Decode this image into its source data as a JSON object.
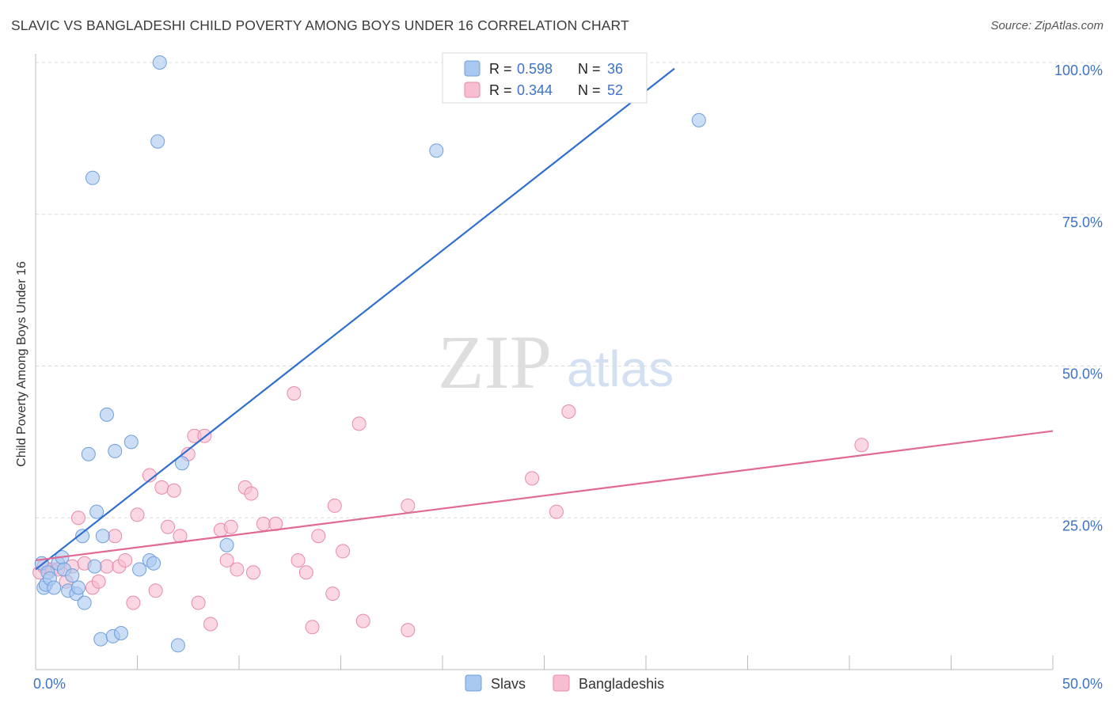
{
  "header": {
    "title": "SLAVIC VS BANGLADESHI CHILD POVERTY AMONG BOYS UNDER 16 CORRELATION CHART",
    "source": "Source: ZipAtlas.com"
  },
  "watermark": {
    "zip": "ZIP",
    "atlas": "atlas"
  },
  "legend_top": {
    "rows": [
      {
        "r_label": "R =",
        "r_value": "0.598",
        "n_label": "N =",
        "n_value": "36"
      },
      {
        "r_label": "R =",
        "r_value": "0.344",
        "n_label": "N =",
        "n_value": "52"
      }
    ]
  },
  "legend_bottom": {
    "items": [
      {
        "label": "Slavs"
      },
      {
        "label": "Bangladeshis"
      }
    ]
  },
  "colors": {
    "slavs_fill": "#a9c8f0",
    "slavs_stroke": "#6f9fdb",
    "slavs_line": "#2f6fd0",
    "bangla_fill": "#f7bdd0",
    "bangla_stroke": "#e88aa8",
    "bangla_line": "#e06a95",
    "tick_text": "#3d72c8",
    "grid": "#dcdcdc"
  },
  "chart_data": {
    "type": "scatter",
    "title": "SLAVIC VS BANGLADESHI CHILD POVERTY AMONG BOYS UNDER 16 CORRELATION CHART",
    "xlabel": "",
    "ylabel": "Child Poverty Among Boys Under 16",
    "xlim": [
      0,
      50
    ],
    "ylim": [
      0,
      100
    ],
    "x_ticks": [
      {
        "value": 0,
        "label": "0.0%"
      },
      {
        "value": 50,
        "label": "50.0%"
      }
    ],
    "y_ticks": [
      {
        "value": 25,
        "label": "25.0%"
      },
      {
        "value": 50,
        "label": "50.0%"
      },
      {
        "value": 75,
        "label": "75.0%"
      },
      {
        "value": 100,
        "label": "100.0%"
      }
    ],
    "grid": true,
    "legend_position": "top-center",
    "series": [
      {
        "name": "Slavs",
        "r": 0.598,
        "n": 36,
        "trend": {
          "x": [
            0,
            31.4
          ],
          "y": [
            16.5,
            99.0
          ]
        },
        "points": [
          [
            0.3,
            17.5
          ],
          [
            0.4,
            13.5
          ],
          [
            0.5,
            14.0
          ],
          [
            0.6,
            16.0
          ],
          [
            0.7,
            15.0
          ],
          [
            0.9,
            13.5
          ],
          [
            1.1,
            17.5
          ],
          [
            1.3,
            18.5
          ],
          [
            1.4,
            16.5
          ],
          [
            1.6,
            13.0
          ],
          [
            1.8,
            15.5
          ],
          [
            2.0,
            12.5
          ],
          [
            2.1,
            13.5
          ],
          [
            2.3,
            22.0
          ],
          [
            2.4,
            11.0
          ],
          [
            2.6,
            35.5
          ],
          [
            2.8,
            81.0
          ],
          [
            2.9,
            17.0
          ],
          [
            3.0,
            26.0
          ],
          [
            3.2,
            5.0
          ],
          [
            3.3,
            22.0
          ],
          [
            3.5,
            42.0
          ],
          [
            3.8,
            5.5
          ],
          [
            3.9,
            36.0
          ],
          [
            4.2,
            6.0
          ],
          [
            4.7,
            37.5
          ],
          [
            5.1,
            16.5
          ],
          [
            5.6,
            18.0
          ],
          [
            5.8,
            17.5
          ],
          [
            6.0,
            87.0
          ],
          [
            6.1,
            100.0
          ],
          [
            7.0,
            4.0
          ],
          [
            7.2,
            34.0
          ],
          [
            9.4,
            20.5
          ],
          [
            19.7,
            85.5
          ],
          [
            32.6,
            90.5
          ]
        ]
      },
      {
        "name": "Bangladeshis",
        "r": 0.344,
        "n": 52,
        "trend": {
          "x": [
            0,
            50
          ],
          "y": [
            18.0,
            39.3
          ]
        },
        "points": [
          [
            0.2,
            16.0
          ],
          [
            0.4,
            17.0
          ],
          [
            0.8,
            16.5
          ],
          [
            1.1,
            16.5
          ],
          [
            1.5,
            14.5
          ],
          [
            1.8,
            17.0
          ],
          [
            2.1,
            25.0
          ],
          [
            2.4,
            17.5
          ],
          [
            2.8,
            13.5
          ],
          [
            3.1,
            14.5
          ],
          [
            3.5,
            17.0
          ],
          [
            3.9,
            22.0
          ],
          [
            4.1,
            17.0
          ],
          [
            4.4,
            18.0
          ],
          [
            4.8,
            11.0
          ],
          [
            5.0,
            25.5
          ],
          [
            5.6,
            32.0
          ],
          [
            5.9,
            13.0
          ],
          [
            6.2,
            30.0
          ],
          [
            6.5,
            23.5
          ],
          [
            6.8,
            29.5
          ],
          [
            7.1,
            22.0
          ],
          [
            7.5,
            35.5
          ],
          [
            7.8,
            38.5
          ],
          [
            8.0,
            11.0
          ],
          [
            8.3,
            38.5
          ],
          [
            8.6,
            7.5
          ],
          [
            9.1,
            23.0
          ],
          [
            9.4,
            18.0
          ],
          [
            9.6,
            23.5
          ],
          [
            9.9,
            16.5
          ],
          [
            10.3,
            30.0
          ],
          [
            10.6,
            29.0
          ],
          [
            10.7,
            16.0
          ],
          [
            11.2,
            24.0
          ],
          [
            11.8,
            24.0
          ],
          [
            12.7,
            45.5
          ],
          [
            12.9,
            18.0
          ],
          [
            13.3,
            16.0
          ],
          [
            13.6,
            7.0
          ],
          [
            13.9,
            22.0
          ],
          [
            14.6,
            12.5
          ],
          [
            14.7,
            27.0
          ],
          [
            15.1,
            19.5
          ],
          [
            15.9,
            40.5
          ],
          [
            16.1,
            8.0
          ],
          [
            18.3,
            27.0
          ],
          [
            18.3,
            6.5
          ],
          [
            24.4,
            31.5
          ],
          [
            25.6,
            26.0
          ],
          [
            26.2,
            42.5
          ],
          [
            40.6,
            37.0
          ]
        ]
      }
    ]
  }
}
